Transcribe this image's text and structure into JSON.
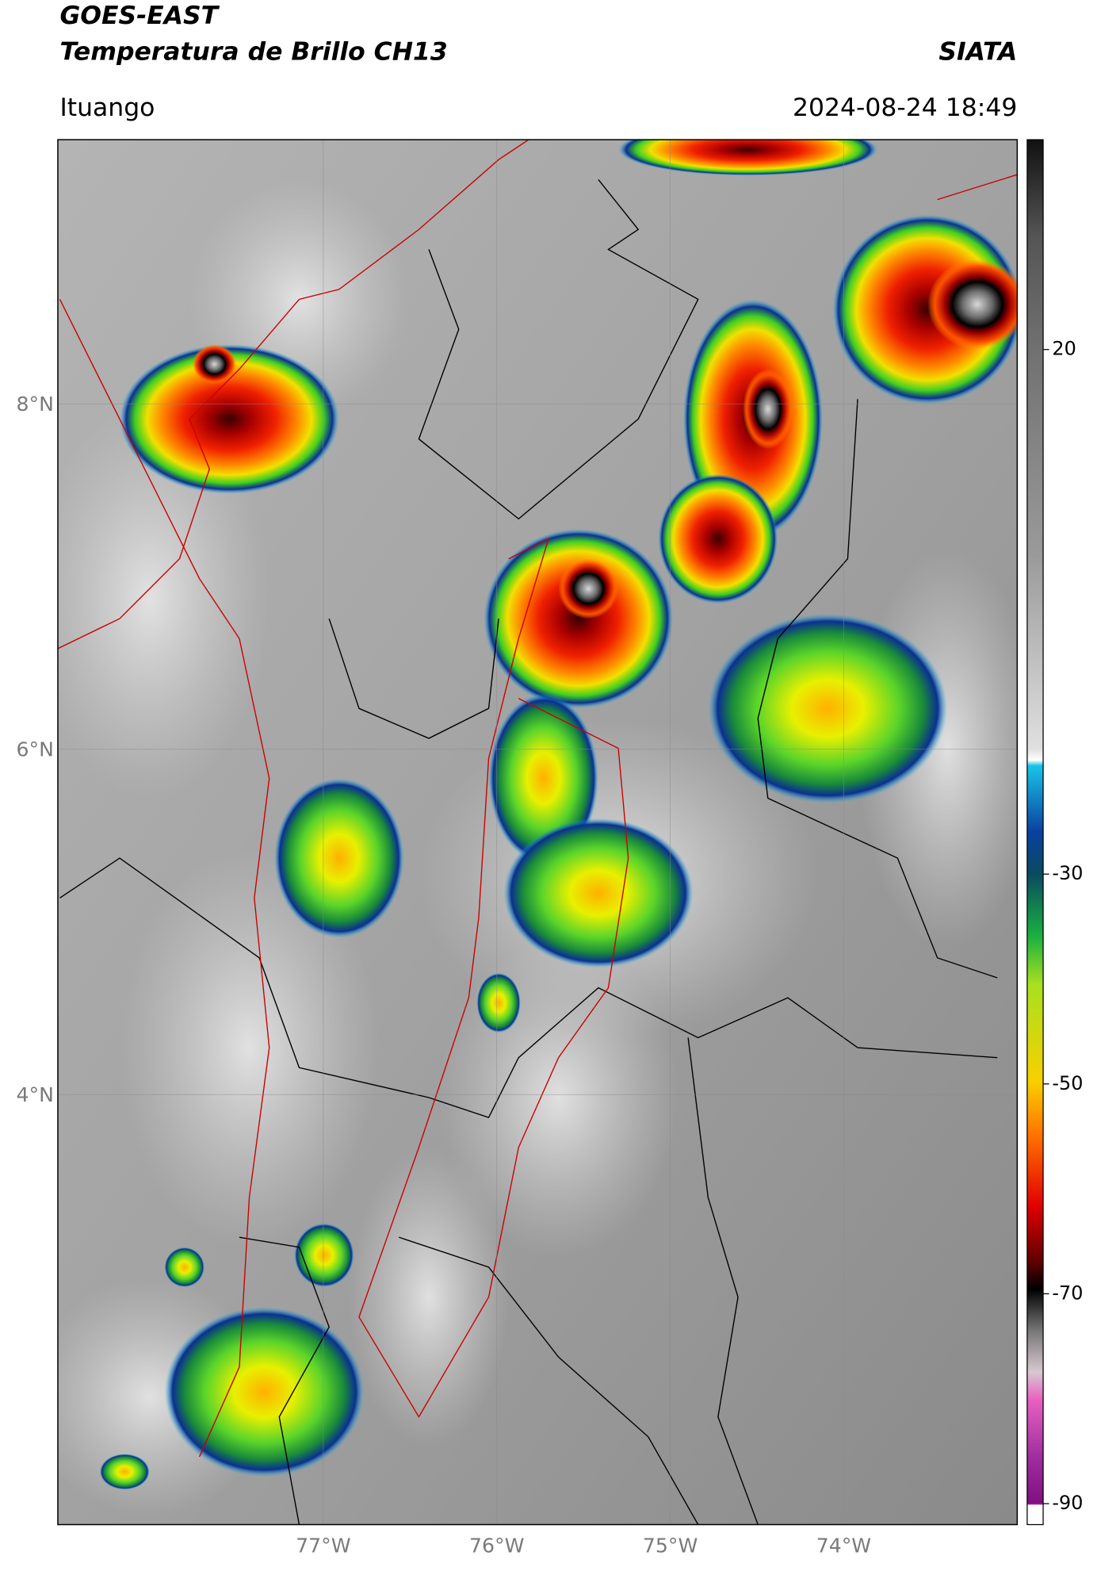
{
  "header": {
    "title": "GOES-EAST",
    "subtitle": "Temperatura de Brillo CH13",
    "source": "SIATA",
    "region": "Ituango",
    "datetime": "2024-08-24 18:49"
  },
  "map": {
    "lon_range": [
      -78.53,
      -73.0
    ],
    "lat_range": [
      1.51,
      9.53
    ],
    "lon_ticks": [
      {
        "value": -77,
        "label": "77°W"
      },
      {
        "value": -76,
        "label": "76°W"
      },
      {
        "value": -75,
        "label": "75°W"
      },
      {
        "value": -74,
        "label": "74°W"
      }
    ],
    "lat_ticks": [
      {
        "value": 8,
        "label": "8°N"
      },
      {
        "value": 6,
        "label": "6°N"
      },
      {
        "value": 4,
        "label": "4°N"
      }
    ]
  },
  "colorbar": {
    "ylim": [
      -92,
      40
    ],
    "yticks": [
      20,
      -30,
      -50,
      -70,
      -90
    ]
  }
}
